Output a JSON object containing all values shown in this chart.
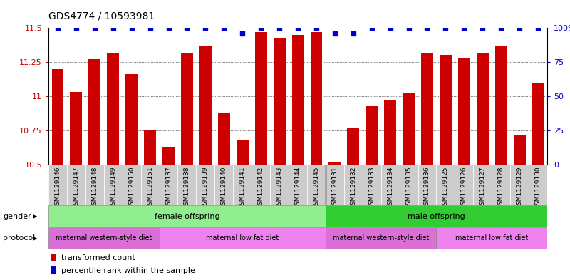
{
  "title": "GDS4774 / 10593981",
  "samples": [
    "GSM1129146",
    "GSM1129147",
    "GSM1129148",
    "GSM1129149",
    "GSM1129150",
    "GSM1129151",
    "GSM1129137",
    "GSM1129138",
    "GSM1129139",
    "GSM1129140",
    "GSM1129141",
    "GSM1129142",
    "GSM1129143",
    "GSM1129144",
    "GSM1129145",
    "GSM1129131",
    "GSM1129132",
    "GSM1129133",
    "GSM1129134",
    "GSM1129135",
    "GSM1129136",
    "GSM1129125",
    "GSM1129126",
    "GSM1129127",
    "GSM1129128",
    "GSM1129129",
    "GSM1129130"
  ],
  "bar_values": [
    11.2,
    11.03,
    11.27,
    11.32,
    11.16,
    10.75,
    10.63,
    11.32,
    11.37,
    10.88,
    10.68,
    11.47,
    11.42,
    11.45,
    11.47,
    10.52,
    10.77,
    10.93,
    10.97,
    11.02,
    11.32,
    11.3,
    11.28,
    11.32,
    11.37,
    10.72,
    11.1
  ],
  "percentile_values": [
    100,
    100,
    100,
    100,
    100,
    100,
    100,
    100,
    100,
    100,
    96,
    100,
    100,
    100,
    100,
    96,
    96,
    100,
    100,
    100,
    100,
    100,
    100,
    100,
    100,
    100,
    100
  ],
  "ylim_left": [
    10.5,
    11.5
  ],
  "ylim_right": [
    0,
    100
  ],
  "yticks_left": [
    10.5,
    10.75,
    11.0,
    11.25,
    11.5
  ],
  "ytick_labels_left": [
    "10.5",
    "10.75",
    "11",
    "11.25",
    "11.5"
  ],
  "yticks_right": [
    0,
    25,
    50,
    75,
    100
  ],
  "ytick_labels_right": [
    "0",
    "25",
    "50",
    "75",
    "100%"
  ],
  "bar_color": "#cc0000",
  "percentile_color": "#0000cc",
  "background_color": "#ffffff",
  "tick_bg_color": "#cccccc",
  "female_color": "#90ee90",
  "male_color": "#32cd32",
  "maternal_western_color": "#da70d6",
  "maternal_low_fat_color": "#ee82ee",
  "n_female": 15,
  "n_male": 12,
  "n_female_western": 6,
  "n_female_low_fat": 9,
  "n_male_western": 6,
  "n_male_low_fat": 6,
  "title_fontsize": 10,
  "tick_label_fontsize": 6.5,
  "ytick_fontsize": 8,
  "label_fontsize": 8,
  "legend_fontsize": 8,
  "legend_transformed": "transformed count",
  "legend_percentile": "percentile rank within the sample",
  "gender_label": "gender",
  "protocol_label": "protocol",
  "female_label": "female offspring",
  "male_label": "male offspring",
  "maternal_western_label": "maternal western-style diet",
  "maternal_low_fat_label": "maternal low fat diet"
}
